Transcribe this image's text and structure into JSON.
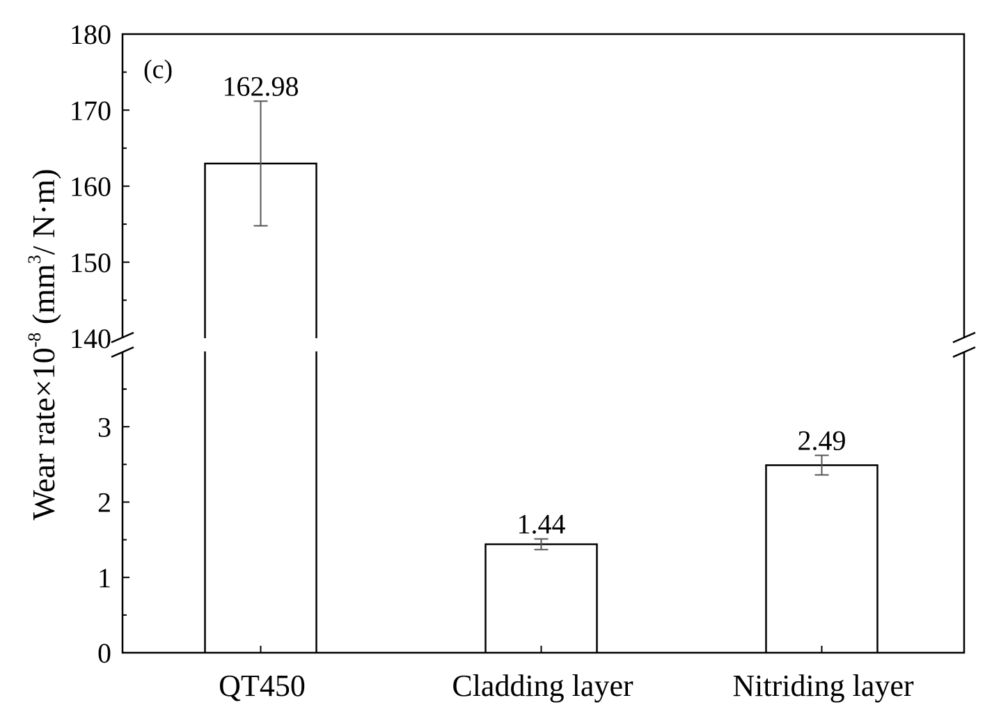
{
  "chart_data": {
    "type": "bar",
    "panel_label": "(c)",
    "title": "",
    "xlabel": "",
    "ylabel": {
      "prefix": "Wear rate×10",
      "exp1": "-8",
      "mid": " (mm",
      "exp2": "3",
      "suffix": "/ N·m)"
    },
    "categories": [
      "QT450",
      "Cladding layer",
      "Nitriding layer"
    ],
    "values": [
      162.98,
      1.44,
      2.49
    ],
    "value_labels": [
      "162.98",
      "1.44",
      "2.49"
    ],
    "error": [
      8.2,
      0.07,
      0.13
    ],
    "y_axis": {
      "broken": true,
      "lower_range": [
        0,
        4
      ],
      "lower_ticks": [
        0,
        1,
        2,
        3
      ],
      "upper_range": [
        140,
        180
      ],
      "upper_ticks": [
        140,
        150,
        160,
        170,
        180
      ]
    },
    "grid": false,
    "legend": "none",
    "colors": {
      "bar_fill": "#ffffff",
      "bar_stroke": "#000000",
      "error_bar": "#555555",
      "axis": "#000000"
    }
  }
}
